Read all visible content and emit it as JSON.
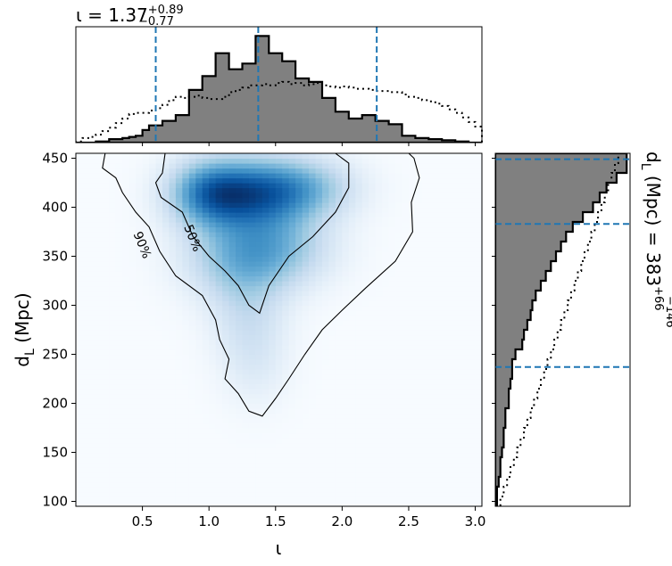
{
  "chart_data": [
    {
      "panel": "top-marginal",
      "type": "histogram",
      "title_main": "ι = 1.37",
      "title_sup": "+0.89",
      "title_sub": "−0.77",
      "xlim": [
        0.0,
        3.05
      ],
      "quantile_lines": [
        0.6,
        1.37,
        2.26
      ],
      "bin_edges": [
        0.0,
        0.05,
        0.1,
        0.15,
        0.2,
        0.25,
        0.3,
        0.35,
        0.4,
        0.45,
        0.5,
        0.55,
        0.6,
        0.65,
        0.7,
        0.75,
        0.8,
        0.85,
        0.9,
        0.95,
        1.0,
        1.05,
        1.1,
        1.15,
        1.2,
        1.25,
        1.3,
        1.35,
        1.4,
        1.45,
        1.5,
        1.55,
        1.6,
        1.65,
        1.7,
        1.75,
        1.8,
        1.85,
        1.9,
        1.95,
        2.0,
        2.05,
        2.1,
        2.15,
        2.2,
        2.25,
        2.3,
        2.35,
        2.4,
        2.45,
        2.5,
        2.55,
        2.6,
        2.65,
        2.7,
        2.75,
        2.8,
        2.85,
        2.9,
        2.95,
        3.0,
        3.05
      ],
      "posterior_counts": [
        0,
        0,
        0,
        1,
        1,
        3,
        3,
        4,
        5,
        6,
        11,
        15,
        15,
        19,
        19,
        24,
        24,
        46,
        46,
        58,
        58,
        78,
        78,
        64,
        64,
        69,
        69,
        93,
        93,
        78,
        78,
        71,
        71,
        56,
        56,
        53,
        53,
        39,
        39,
        27,
        27,
        21,
        21,
        24,
        24,
        19,
        19,
        16,
        16,
        6,
        6,
        4,
        4,
        3,
        3,
        2,
        2,
        1,
        1,
        0,
        0
      ],
      "prior_counts": [
        1,
        4,
        5,
        7,
        10,
        13,
        17,
        21,
        25,
        26,
        26,
        28,
        30,
        33,
        37,
        40,
        39,
        40,
        41,
        39,
        38,
        38,
        40,
        44,
        46,
        48,
        50,
        50,
        51,
        50,
        52,
        53,
        51,
        52,
        50,
        51,
        52,
        50,
        49,
        48,
        49,
        48,
        47,
        47,
        46,
        45,
        45,
        44,
        44,
        42,
        40,
        39,
        37,
        36,
        34,
        32,
        29,
        26,
        22,
        18,
        14
      ],
      "ymax": 98
    },
    {
      "panel": "main-2d",
      "type": "heatmap",
      "xlabel": "ι",
      "ylabel": "d_L (Mpc)",
      "xlim": [
        0.0,
        3.05
      ],
      "ylim": [
        95,
        455
      ],
      "xticks": [
        "0.5",
        "1.0",
        "1.5",
        "2.0",
        "2.5",
        "3.0"
      ],
      "xtick_values": [
        0.5,
        1.0,
        1.5,
        2.0,
        2.5,
        3.0
      ],
      "yticks": [
        "100",
        "150",
        "200",
        "250",
        "300",
        "350",
        "400",
        "450"
      ],
      "ytick_values": [
        100,
        150,
        200,
        250,
        300,
        350,
        400,
        450
      ],
      "contour_labels": [
        "90%",
        "50%"
      ],
      "contour_label_positions": [
        [
          0.47,
          360
        ],
        [
          0.85,
          367
        ]
      ],
      "contour_90": [
        [
          0.22,
          455
        ],
        [
          0.2,
          440
        ],
        [
          0.3,
          430
        ],
        [
          0.35,
          415
        ],
        [
          0.45,
          395
        ],
        [
          0.55,
          380
        ],
        [
          0.63,
          355
        ],
        [
          0.75,
          330
        ],
        [
          0.95,
          310
        ],
        [
          1.05,
          285
        ],
        [
          1.08,
          265
        ],
        [
          1.15,
          245
        ],
        [
          1.12,
          225
        ],
        [
          1.22,
          210
        ],
        [
          1.3,
          192
        ],
        [
          1.4,
          187
        ],
        [
          1.5,
          205
        ],
        [
          1.6,
          225
        ],
        [
          1.72,
          250
        ],
        [
          1.85,
          275
        ],
        [
          2.0,
          295
        ],
        [
          2.18,
          318
        ],
        [
          2.4,
          345
        ],
        [
          2.53,
          375
        ],
        [
          2.52,
          405
        ],
        [
          2.58,
          430
        ],
        [
          2.54,
          450
        ],
        [
          2.5,
          455
        ]
      ],
      "contour_50": [
        [
          0.67,
          455
        ],
        [
          0.65,
          435
        ],
        [
          0.6,
          425
        ],
        [
          0.64,
          410
        ],
        [
          0.8,
          395
        ],
        [
          0.88,
          370
        ],
        [
          1.0,
          350
        ],
        [
          1.12,
          335
        ],
        [
          1.22,
          320
        ],
        [
          1.3,
          300
        ],
        [
          1.38,
          292
        ],
        [
          1.45,
          320
        ],
        [
          1.6,
          350
        ],
        [
          1.78,
          370
        ],
        [
          1.95,
          395
        ],
        [
          2.05,
          420
        ],
        [
          2.05,
          445
        ],
        [
          1.95,
          455
        ]
      ],
      "density_blobs": [
        {
          "x": 1.0,
          "y": 415,
          "sx": 0.22,
          "sy": 24,
          "w": 1.0
        },
        {
          "x": 1.35,
          "y": 415,
          "sx": 0.25,
          "sy": 25,
          "w": 0.8
        },
        {
          "x": 1.7,
          "y": 420,
          "sx": 0.28,
          "sy": 22,
          "w": 0.65
        },
        {
          "x": 1.2,
          "y": 350,
          "sx": 0.28,
          "sy": 30,
          "w": 0.55
        },
        {
          "x": 1.55,
          "y": 360,
          "sx": 0.28,
          "sy": 28,
          "w": 0.5
        },
        {
          "x": 1.3,
          "y": 290,
          "sx": 0.2,
          "sy": 35,
          "w": 0.3
        },
        {
          "x": 1.35,
          "y": 235,
          "sx": 0.18,
          "sy": 30,
          "w": 0.14
        }
      ]
    },
    {
      "panel": "right-marginal",
      "type": "histogram",
      "orientation": "horizontal",
      "title_main": "d_L (Mpc) = 383",
      "title_sup": "+66",
      "title_sub": "−146",
      "ylim": [
        95,
        455
      ],
      "quantile_lines": [
        237,
        383,
        449
      ],
      "bin_edges": [
        95,
        105,
        115,
        125,
        135,
        145,
        155,
        165,
        175,
        185,
        195,
        205,
        215,
        225,
        235,
        245,
        255,
        265,
        275,
        285,
        295,
        305,
        315,
        325,
        335,
        345,
        355,
        365,
        375,
        385,
        395,
        405,
        415,
        425,
        435,
        445,
        455
      ],
      "posterior_counts": [
        1,
        1,
        2,
        3,
        3,
        4,
        5,
        5,
        6,
        6,
        8,
        8,
        9,
        10,
        10,
        12,
        16,
        17,
        19,
        21,
        22,
        24,
        27,
        30,
        33,
        36,
        39,
        42,
        46,
        52,
        58,
        62,
        66,
        72,
        78,
        78
      ],
      "prior_counts": [
        3,
        5,
        7,
        9,
        11,
        13,
        15,
        17,
        19,
        21,
        23,
        25,
        27,
        29,
        31,
        33,
        35,
        37,
        39,
        41,
        43,
        45,
        47,
        49,
        51,
        53,
        55,
        57,
        59,
        61,
        63,
        65,
        67,
        69,
        71,
        73
      ],
      "xmax": 80
    }
  ]
}
